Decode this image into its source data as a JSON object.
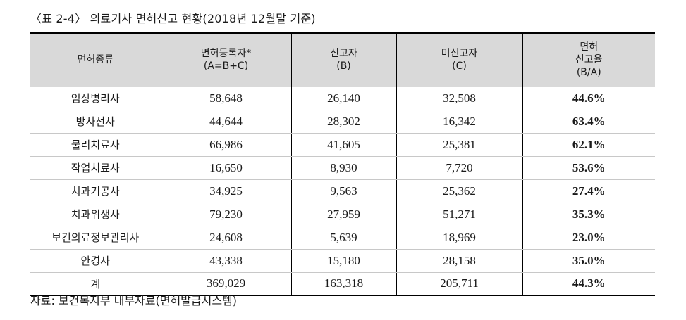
{
  "title": "〈표 2-4〉 의료기사 면허신고 현황(2018년 12월말 기준)",
  "table": {
    "headers": [
      [
        "면허종류"
      ],
      [
        "면허등록자*",
        "(A=B+C)"
      ],
      [
        "신고자",
        "(B)"
      ],
      [
        "미신고자",
        "(C)"
      ],
      [
        "면허",
        "신고율",
        "(B/A)"
      ]
    ],
    "rows": [
      [
        "임상병리사",
        "58,648",
        "26,140",
        "32,508",
        "44.6%"
      ],
      [
        "방사선사",
        "44,644",
        "28,302",
        "16,342",
        "63.4%"
      ],
      [
        "물리치료사",
        "66,986",
        "41,605",
        "25,381",
        "62.1%"
      ],
      [
        "작업치료사",
        "16,650",
        "8,930",
        "7,720",
        "53.6%"
      ],
      [
        "치과기공사",
        "34,925",
        "9,563",
        "25,362",
        "27.4%"
      ],
      [
        "치과위생사",
        "79,230",
        "27,959",
        "51,271",
        "35.3%"
      ],
      [
        "보건의료정보관리사",
        "24,608",
        "5,639",
        "18,969",
        "23.0%"
      ],
      [
        "안경사",
        "43,338",
        "15,180",
        "28,158",
        "35.0%"
      ],
      [
        "계",
        "369,029",
        "163,318",
        "205,711",
        "44.3%"
      ]
    ]
  },
  "source": "자료: 보건복지부 내부자료(면허발급시스템)"
}
